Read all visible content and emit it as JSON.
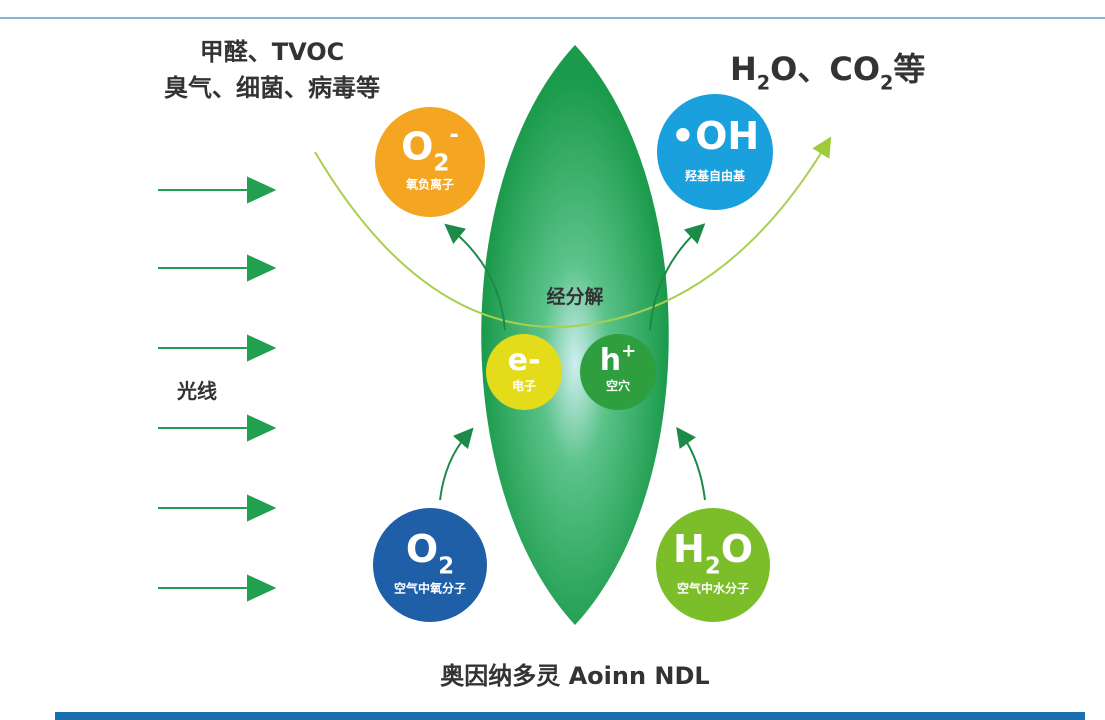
{
  "pollutants": [
    "甲醛、TVOC",
    "臭气、细菌、病毒等"
  ],
  "products": [
    {
      "text": "H"
    },
    {
      "text": "2",
      "sub": true
    },
    {
      "text": "O、CO"
    },
    {
      "text": "2",
      "sub": true
    },
    {
      "text": "等"
    }
  ],
  "light": "光线",
  "process": "经分解",
  "product_name": "奥因纳多灵 Aoinn NDL",
  "nodes": [
    {
      "formula": [
        {
          "text": "O"
        },
        {
          "text": "2",
          "sub": true
        },
        {
          "text": "-",
          "sup": true
        }
      ],
      "label": "氧负离子"
    },
    {
      "formula": [
        {
          "text": "•OH"
        }
      ],
      "label": "羟基自由基"
    },
    {
      "formula": [
        {
          "text": "e-"
        }
      ],
      "label": "电子"
    },
    {
      "formula": [
        {
          "text": "h"
        },
        {
          "text": "+",
          "sup": true
        }
      ],
      "label": "空穴"
    },
    {
      "formula": [
        {
          "text": "O"
        },
        {
          "text": "2",
          "sub": true
        }
      ],
      "label": "空气中氧分子"
    },
    {
      "formula": [
        {
          "text": "H"
        },
        {
          "text": "2",
          "sub": true
        },
        {
          "text": "O"
        }
      ],
      "label": "空气中水分子"
    }
  ]
}
